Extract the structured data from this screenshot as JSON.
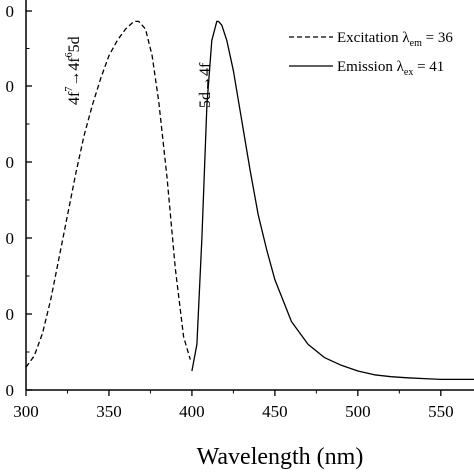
{
  "chart_data": {
    "type": "line",
    "xlabel": "Wavelength (nm)",
    "xlim": [
      300,
      570
    ],
    "x_ticks": [
      "300",
      "350",
      "400",
      "450",
      "500",
      "550"
    ],
    "y_ticks": [
      "0",
      "0",
      "0",
      "0",
      "0",
      "0"
    ],
    "legend": {
      "placement": "top-right",
      "entries": [
        {
          "style": "dashed",
          "label": "Excitation λ",
          "sub": "em",
          "tail": " = 36"
        },
        {
          "style": "solid",
          "label": "Emission  λ",
          "sub": "ex",
          "tail": " = 41"
        }
      ]
    },
    "annotations": {
      "excitation": {
        "t1": "4f",
        "s1": "7",
        "arrow": "→",
        "t2": "4f",
        "s2": "6",
        "t3": "5d"
      },
      "emission": {
        "t1": "5d",
        "arrow": "→",
        "t2": "4f"
      }
    },
    "series": [
      {
        "line": "dashed",
        "x": [
          300,
          305,
          310,
          315,
          320,
          325,
          330,
          335,
          340,
          345,
          350,
          355,
          360,
          365,
          368,
          372,
          376,
          380,
          385,
          390,
          395,
          399
        ],
        "y": [
          0.06,
          0.09,
          0.15,
          0.24,
          0.35,
          0.46,
          0.57,
          0.67,
          0.75,
          0.82,
          0.88,
          0.92,
          0.95,
          0.97,
          0.97,
          0.95,
          0.88,
          0.76,
          0.56,
          0.32,
          0.14,
          0.08
        ]
      },
      {
        "line": "solid",
        "x": [
          400,
          403,
          406,
          409,
          412,
          415,
          416,
          418,
          421,
          425,
          430,
          435,
          440,
          445,
          450,
          460,
          470,
          480,
          490,
          500,
          510,
          520,
          530,
          540,
          550,
          560,
          570
        ],
        "y": [
          0.05,
          0.12,
          0.4,
          0.75,
          0.92,
          0.97,
          0.97,
          0.96,
          0.92,
          0.84,
          0.71,
          0.58,
          0.46,
          0.37,
          0.29,
          0.18,
          0.12,
          0.085,
          0.065,
          0.05,
          0.04,
          0.035,
          0.032,
          0.03,
          0.028,
          0.028,
          0.028
        ]
      }
    ]
  }
}
